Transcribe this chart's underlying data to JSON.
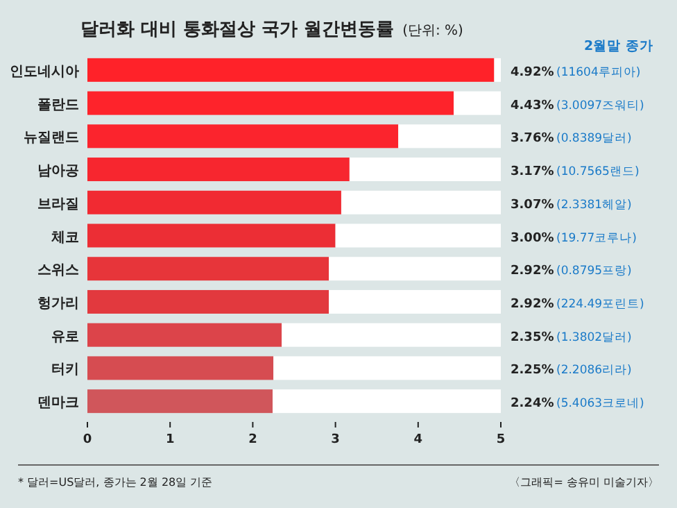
{
  "chart_data": {
    "type": "bar",
    "orientation": "horizontal",
    "title": "달러화 대비 통화절상 국가 월간변동률",
    "subtitle": "(단위: %)",
    "categories": [
      "인도네시아",
      "폴란드",
      "뉴질랜드",
      "남아공",
      "브라질",
      "체코",
      "스위스",
      "헝가리",
      "유로",
      "터키",
      "덴마크"
    ],
    "stacked": true,
    "series": [
      {
        "values": [
          4.92,
          4.43,
          3.76,
          3.17,
          3.07,
          3.0,
          2.92,
          2.92,
          2.35,
          2.25,
          2.24
        ],
        "colors": [
          "#ff2229",
          "#fe232b",
          "#fb242d",
          "#f7262f",
          "#f12a32",
          "#ec2e35",
          "#e7353a",
          "#e2393e",
          "#dc444a",
          "#d64c51",
          "#d0565b"
        ]
      },
      {
        "color": "#ffffff",
        "values": [
          0.08,
          0.57,
          1.24,
          1.83,
          1.93,
          2.0,
          2.08,
          2.08,
          2.65,
          2.75,
          2.76
        ]
      }
    ],
    "value_labels": [
      "4.92%",
      "4.43%",
      "3.76%",
      "3.17%",
      "3.07%",
      "3.00%",
      "2.92%",
      "2.92%",
      "2.35%",
      "2.25%",
      "2.24%"
    ],
    "xlim": [
      0,
      5
    ],
    "xticks": [
      0,
      1,
      2,
      3,
      4,
      5
    ],
    "annotations": [
      "2월말 종가",
      "(11604루피아)",
      "(3.0097즈워티)",
      "(0.8389달러)",
      "(10.7565랜드)",
      "(2.3381헤알)",
      "(19.77코루나)",
      "(0.8795프랑)",
      "(224.49포린트)",
      "(1.3802달러)",
      "(2.2086리라)",
      "(5.4063크로네)",
      "* 달러=US달러, 종가는 2월 28일 기준",
      "〈그래픽= 송유미 미술기자〉"
    ]
  }
}
